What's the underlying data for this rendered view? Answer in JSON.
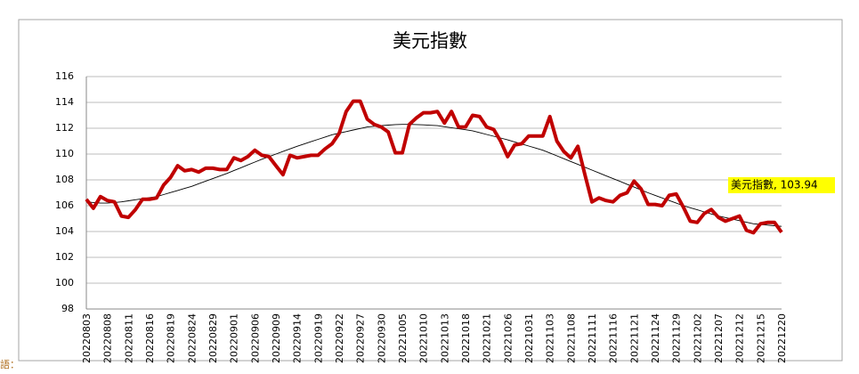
{
  "chart_data": {
    "type": "line",
    "title": "美元指數",
    "categories": [
      "20220803",
      null,
      null,
      "20220808",
      null,
      null,
      "20220811",
      null,
      null,
      "20220816",
      null,
      null,
      "20220819",
      null,
      null,
      "20220824",
      null,
      null,
      "20220829",
      null,
      null,
      "20220901",
      null,
      null,
      "20220906",
      null,
      null,
      "20220909",
      null,
      null,
      "20220914",
      null,
      null,
      "20220919",
      null,
      null,
      "20220922",
      null,
      null,
      "20220927",
      null,
      null,
      "20220930",
      null,
      null,
      "20221005",
      null,
      null,
      "20221010",
      null,
      null,
      "20221013",
      null,
      null,
      "20221018",
      null,
      null,
      "20221021",
      null,
      null,
      "20221026",
      null,
      null,
      "20221031",
      null,
      null,
      "20221103",
      null,
      null,
      "20221108",
      null,
      null,
      "20221111",
      null,
      null,
      "20221116",
      null,
      null,
      "20221121",
      null,
      null,
      "20221124",
      null,
      null,
      "20221129",
      null,
      null,
      "20221202",
      null,
      null,
      "20221207",
      null,
      null,
      "20221212",
      null,
      null,
      "20221215",
      null,
      null,
      "20221220"
    ],
    "series": [
      {
        "name": "美元指數",
        "color": "#c00000",
        "values": [
          106.5,
          105.8,
          106.7,
          106.4,
          106.3,
          105.2,
          105.1,
          105.7,
          106.5,
          106.5,
          106.6,
          107.6,
          108.2,
          109.1,
          108.7,
          108.8,
          108.6,
          108.9,
          108.9,
          108.8,
          108.8,
          109.7,
          109.5,
          109.8,
          110.3,
          109.9,
          109.8,
          109.1,
          108.4,
          109.9,
          109.7,
          109.8,
          109.9,
          109.9,
          110.4,
          110.8,
          111.6,
          113.3,
          114.1,
          114.1,
          112.7,
          112.3,
          112.1,
          111.7,
          110.1,
          110.1,
          112.3,
          112.8,
          113.2,
          113.2,
          113.3,
          112.4,
          113.3,
          112.1,
          112.1,
          113.0,
          112.9,
          112.1,
          111.9,
          111.0,
          109.8,
          110.7,
          110.8,
          111.4,
          111.4,
          111.4,
          112.9,
          111.0,
          110.2,
          109.7,
          110.6,
          108.4,
          106.3,
          106.6,
          106.4,
          106.3,
          106.8,
          107.0,
          107.9,
          107.3,
          106.1,
          106.1,
          106.0,
          106.8,
          106.9,
          105.9,
          104.8,
          104.7,
          105.4,
          105.7,
          105.1,
          104.8,
          105.0,
          105.2,
          104.1,
          103.9,
          104.6,
          104.7,
          104.7,
          103.94
        ]
      },
      {
        "color": "#000000",
        "values": [
          106.3,
          106.25,
          106.2,
          106.2,
          106.25,
          106.3,
          106.38,
          106.46,
          106.54,
          106.62,
          106.7,
          106.86,
          107.02,
          107.18,
          107.34,
          107.5,
          107.7,
          107.9,
          108.1,
          108.3,
          108.5,
          108.72,
          108.94,
          109.16,
          109.38,
          109.6,
          109.8,
          110.0,
          110.2,
          110.4,
          110.6,
          110.78,
          110.96,
          111.14,
          111.32,
          111.5,
          111.62,
          111.74,
          111.86,
          111.98,
          112.1,
          112.15,
          112.2,
          112.24,
          112.28,
          112.3,
          112.3,
          112.28,
          112.26,
          112.23,
          112.2,
          112.12,
          112.04,
          111.96,
          111.88,
          111.8,
          111.66,
          111.52,
          111.38,
          111.24,
          111.1,
          110.94,
          110.78,
          110.62,
          110.46,
          110.3,
          110.08,
          109.86,
          109.64,
          109.42,
          109.2,
          108.98,
          108.76,
          108.54,
          108.32,
          108.1,
          107.88,
          107.66,
          107.44,
          107.22,
          107.0,
          106.8,
          106.6,
          106.4,
          106.2,
          106.0,
          105.84,
          105.68,
          105.52,
          105.36,
          105.2,
          105.08,
          104.96,
          104.84,
          104.72,
          104.6,
          104.55,
          104.5,
          104.45,
          104.4
        ]
      }
    ],
    "annotation": "美元指數, 103.94",
    "ylim": [
      98,
      116
    ],
    "yticks": [
      98,
      100,
      102,
      104,
      106,
      108,
      110,
      112,
      114,
      116
    ],
    "grid": true
  },
  "footer_text": "語："
}
